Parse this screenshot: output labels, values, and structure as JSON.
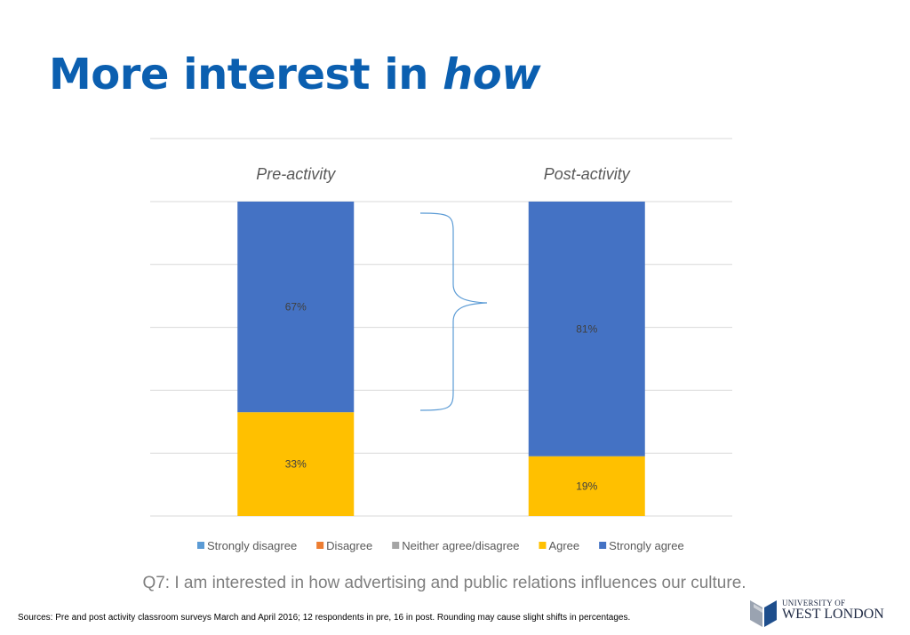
{
  "slide": {
    "title_main": "More interest in ",
    "title_emphasis": "how",
    "question": "Q7: I am interested in how advertising and public relations influences our culture.",
    "sources": "Sources: Pre and post activity classroom surveys March and April 2016; 12 respondents in pre, 16 in post. Rounding may cause slight  shifts in percentages.",
    "logo_line1": "UNIVERSITY OF",
    "logo_line2": "WEST LONDON"
  },
  "chart_data": {
    "type": "bar",
    "stacked": true,
    "categories": [
      "Pre-activity",
      "Post-activity"
    ],
    "ylim": [
      0,
      100
    ],
    "grid": true,
    "legend_position": "bottom",
    "series": [
      {
        "name": "Strongly disagree",
        "color": "#5B9BD5",
        "values": [
          0,
          0
        ],
        "labels": [
          "",
          ""
        ]
      },
      {
        "name": "Disagree",
        "color": "#ED7D31",
        "values": [
          0,
          0
        ],
        "labels": [
          "",
          ""
        ]
      },
      {
        "name": "Neither agree/disagree",
        "color": "#A5A5A5",
        "values": [
          0,
          0
        ],
        "labels": [
          "",
          ""
        ]
      },
      {
        "name": "Agree",
        "color": "#FFC000",
        "values": [
          33,
          19
        ],
        "labels": [
          "33%",
          "19%"
        ]
      },
      {
        "name": "Strongly agree",
        "color": "#4472C4",
        "values": [
          67,
          81
        ],
        "labels": [
          "67%",
          "81%"
        ]
      }
    ],
    "annotation": "brace"
  }
}
